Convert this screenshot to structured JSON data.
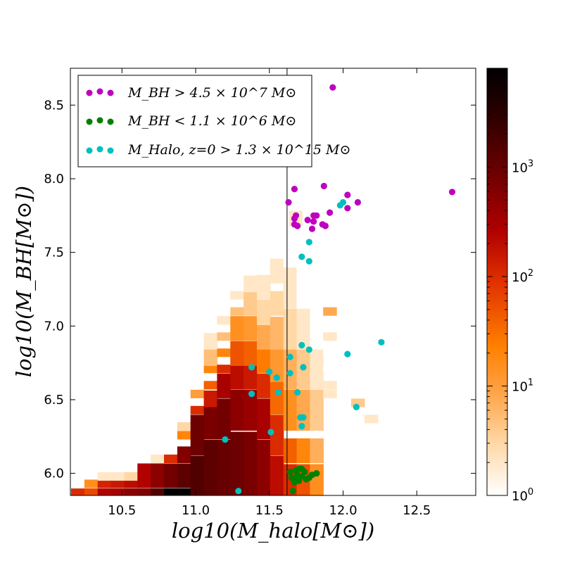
{
  "chart_data": {
    "type": "scatter",
    "title": "",
    "xlabel": "log10(M_halo[M⊙])",
    "ylabel": "log10(M_BH[M⊙])",
    "xlim": [
      10.15,
      12.9
    ],
    "ylim": [
      5.85,
      8.75
    ],
    "xticks": [
      "10.5",
      "11.0",
      "11.5",
      "12.0",
      "12.5"
    ],
    "yticks": [
      "6.0",
      "6.5",
      "7.0",
      "7.5",
      "8.0",
      "8.5"
    ],
    "vline_x": 11.62,
    "colorbar": {
      "scale": "log",
      "range": [
        1,
        8000
      ],
      "ticks": [
        "10^0",
        "10^1",
        "10^2",
        "10^3"
      ],
      "tick_values": [
        1,
        10,
        100,
        1000
      ]
    },
    "legend": {
      "position": "top-left",
      "entries": [
        {
          "label": "M_BH > 4.5 × 10^7 M⊙",
          "color": "#bf00bf"
        },
        {
          "label": "M_BH < 1.1 × 10^6 M⊙",
          "color": "#008000"
        },
        {
          "label": "M_Halo, z=0 > 1.3 × 10^15 M⊙",
          "color": "#00bfbf"
        }
      ]
    },
    "heatmap": {
      "bin_width": 0.09,
      "bin_height": 0.055,
      "columns": [
        {
          "x": 10.2,
          "bins": [
            [
              5.87,
              5.87,
              100
            ]
          ]
        },
        {
          "x": 10.29,
          "bins": [
            [
              5.87,
              5.87,
              60
            ],
            [
              5.93,
              5.93,
              15
            ]
          ]
        },
        {
          "x": 10.38,
          "bins": [
            [
              5.87,
              5.87,
              250
            ],
            [
              5.93,
              5.93,
              120
            ],
            [
              5.98,
              5.98,
              2
            ]
          ]
        },
        {
          "x": 10.47,
          "bins": [
            [
              5.87,
              5.87,
              300
            ],
            [
              5.93,
              5.93,
              150
            ],
            [
              5.98,
              5.98,
              2
            ]
          ]
        },
        {
          "x": 10.56,
          "bins": [
            [
              5.87,
              5.87,
              500
            ],
            [
              5.93,
              5.93,
              200
            ],
            [
              5.98,
              5.98,
              3
            ]
          ]
        },
        {
          "x": 10.65,
          "bins": [
            [
              5.87,
              5.87,
              600
            ],
            [
              5.93,
              6.04,
              250
            ]
          ]
        },
        {
          "x": 10.74,
          "bins": [
            [
              5.87,
              5.87,
              1500
            ],
            [
              5.93,
              6.04,
              500
            ],
            [
              6.1,
              6.1,
              2
            ]
          ]
        },
        {
          "x": 10.83,
          "bins": [
            [
              5.87,
              5.87,
              8000
            ],
            [
              5.93,
              6.04,
              800
            ],
            [
              6.1,
              6.1,
              100
            ]
          ]
        },
        {
          "x": 10.92,
          "bins": [
            [
              5.87,
              5.87,
              8000
            ],
            [
              5.93,
              6.04,
              1200
            ],
            [
              6.1,
              6.2,
              600
            ],
            [
              6.26,
              6.26,
              20
            ],
            [
              6.32,
              6.32,
              3
            ]
          ]
        },
        {
          "x": 11.01,
          "bins": [
            [
              5.87,
              6.1,
              1500
            ],
            [
              6.15,
              6.37,
              900
            ],
            [
              6.43,
              6.48,
              100
            ],
            [
              6.54,
              6.54,
              10
            ]
          ]
        },
        {
          "x": 11.1,
          "bins": [
            [
              5.87,
              6.2,
              1200
            ],
            [
              6.26,
              6.43,
              700
            ],
            [
              6.48,
              6.54,
              150
            ],
            [
              6.6,
              6.65,
              40
            ],
            [
              6.71,
              6.71,
              20
            ],
            [
              6.76,
              6.82,
              5
            ],
            [
              6.87,
              6.93,
              2
            ]
          ]
        },
        {
          "x": 11.19,
          "bins": [
            [
              5.87,
              6.2,
              1000
            ],
            [
              6.26,
              6.48,
              800
            ],
            [
              6.54,
              6.65,
              300
            ],
            [
              6.71,
              6.76,
              100
            ],
            [
              6.82,
              6.87,
              20
            ],
            [
              6.93,
              6.98,
              5
            ],
            [
              7.04,
              7.04,
              2
            ]
          ]
        },
        {
          "x": 11.28,
          "bins": [
            [
              5.87,
              6.26,
              900
            ],
            [
              6.32,
              6.54,
              500
            ],
            [
              6.6,
              6.71,
              200
            ],
            [
              6.76,
              6.87,
              50
            ],
            [
              6.93,
              7.04,
              15
            ],
            [
              7.1,
              7.15,
              5
            ],
            [
              7.21,
              7.21,
              2
            ]
          ]
        },
        {
          "x": 11.37,
          "bins": [
            [
              5.87,
              6.26,
              700
            ],
            [
              6.32,
              6.54,
              400
            ],
            [
              6.6,
              6.71,
              150
            ],
            [
              6.76,
              6.87,
              40
            ],
            [
              6.93,
              7.04,
              12
            ],
            [
              7.1,
              7.21,
              4
            ],
            [
              7.26,
              7.32,
              2
            ]
          ]
        },
        {
          "x": 11.46,
          "bins": [
            [
              5.87,
              6.2,
              500
            ],
            [
              6.26,
              6.48,
              300
            ],
            [
              6.54,
              6.65,
              100
            ],
            [
              6.71,
              6.82,
              25
            ],
            [
              6.87,
              6.98,
              8
            ],
            [
              7.04,
              7.15,
              3
            ],
            [
              7.21,
              7.37,
              2
            ]
          ]
        },
        {
          "x": 11.55,
          "bins": [
            [
              5.87,
              6.1,
              200
            ],
            [
              6.15,
              6.37,
              100
            ],
            [
              6.43,
              6.6,
              35
            ],
            [
              6.65,
              6.82,
              12
            ],
            [
              6.87,
              7.04,
              6
            ],
            [
              7.1,
              7.26,
              3
            ],
            [
              7.32,
              7.48,
              2
            ]
          ]
        },
        {
          "x": 11.64,
          "bins": [
            [
              5.87,
              6.04,
              100
            ],
            [
              6.1,
              6.26,
              40
            ],
            [
              6.32,
              6.54,
              15
            ],
            [
              6.6,
              6.82,
              7
            ],
            [
              6.87,
              7.1,
              3
            ],
            [
              7.15,
              7.37,
              2
            ],
            [
              7.43,
              7.54,
              1
            ]
          ]
        },
        {
          "x": 11.73,
          "bins": [
            [
              5.87,
              6.04,
              50
            ],
            [
              6.1,
              6.26,
              20
            ],
            [
              6.32,
              6.54,
              8
            ],
            [
              6.6,
              6.82,
              4
            ],
            [
              6.87,
              7.1,
              2
            ],
            [
              7.15,
              7.37,
              1
            ]
          ]
        },
        {
          "x": 11.82,
          "bins": [
            [
              5.87,
              6.04,
              15
            ],
            [
              6.1,
              6.26,
              7
            ],
            [
              6.32,
              6.54,
              4
            ],
            [
              6.6,
              6.82,
              2
            ],
            [
              6.87,
              7.1,
              1
            ],
            [
              7.15,
              7.32,
              1
            ]
          ]
        },
        {
          "x": 11.91,
          "bins": [
            [
              6.54,
              6.54,
              2
            ],
            [
              6.6,
              6.65,
              2
            ],
            [
              6.71,
              6.71,
              1
            ],
            [
              6.82,
              6.82,
              1
            ],
            [
              6.93,
              6.93,
              2
            ],
            [
              7.1,
              7.1,
              8
            ]
          ]
        },
        {
          "x": 12.0,
          "bins": [
            [
              6.82,
              6.82,
              1
            ]
          ]
        },
        {
          "x": 12.1,
          "bins": [
            [
              6.48,
              6.48,
              4
            ]
          ]
        },
        {
          "x": 12.19,
          "bins": [
            [
              6.37,
              6.37,
              2
            ]
          ]
        },
        {
          "x": 11.68,
          "bins": [
            [
              7.7,
              7.76,
              2
            ],
            [
              7.65,
              7.65,
              1
            ]
          ]
        },
        {
          "x": 11.77,
          "bins": [
            [
              7.7,
              7.81,
              1
            ]
          ]
        }
      ]
    },
    "series": [
      {
        "name": "M_BH > 4.5 × 10^7 M⊙",
        "color": "#bf00bf",
        "points": [
          [
            11.93,
            8.62
          ],
          [
            12.74,
            7.91
          ],
          [
            11.67,
            7.93
          ],
          [
            11.87,
            7.95
          ],
          [
            12.03,
            7.89
          ],
          [
            12.1,
            7.84
          ],
          [
            11.63,
            7.84
          ],
          [
            11.91,
            7.77
          ],
          [
            12.03,
            7.8
          ],
          [
            11.68,
            7.75
          ],
          [
            11.67,
            7.73
          ],
          [
            11.76,
            7.72
          ],
          [
            11.8,
            7.75
          ],
          [
            11.82,
            7.75
          ],
          [
            11.8,
            7.71
          ],
          [
            11.67,
            7.69
          ],
          [
            11.69,
            7.68
          ],
          [
            11.86,
            7.69
          ],
          [
            11.88,
            7.68
          ],
          [
            11.79,
            7.66
          ]
        ]
      },
      {
        "name": "M_BH < 1.1 × 10^6 M⊙",
        "color": "#008000",
        "points": [
          [
            11.64,
            6.01
          ],
          [
            11.65,
            5.97
          ],
          [
            11.67,
            5.96
          ],
          [
            11.68,
            6.02
          ],
          [
            11.7,
            6.03
          ],
          [
            11.72,
            6.03
          ],
          [
            11.74,
            6.01
          ],
          [
            11.69,
            5.99
          ],
          [
            11.72,
            5.98
          ],
          [
            11.67,
            5.94
          ],
          [
            11.7,
            5.95
          ],
          [
            11.77,
            5.97
          ],
          [
            11.79,
            5.99
          ],
          [
            11.82,
            6.0
          ],
          [
            11.75,
            5.96
          ],
          [
            11.66,
            5.88
          ]
        ]
      },
      {
        "name": "M_Halo, z=0 > 1.3 × 10^15 M⊙",
        "color": "#00bfbf",
        "points": [
          [
            11.98,
            7.82
          ],
          [
            12.0,
            7.84
          ],
          [
            11.77,
            7.57
          ],
          [
            11.72,
            7.47
          ],
          [
            11.77,
            7.44
          ],
          [
            12.26,
            6.89
          ],
          [
            11.72,
            6.87
          ],
          [
            11.77,
            6.84
          ],
          [
            12.03,
            6.81
          ],
          [
            11.64,
            6.79
          ],
          [
            11.38,
            6.72
          ],
          [
            11.73,
            6.72
          ],
          [
            11.5,
            6.69
          ],
          [
            11.64,
            6.68
          ],
          [
            11.55,
            6.65
          ],
          [
            11.38,
            6.54
          ],
          [
            11.56,
            6.55
          ],
          [
            11.69,
            6.55
          ],
          [
            12.09,
            6.45
          ],
          [
            11.71,
            6.38
          ],
          [
            11.73,
            6.38
          ],
          [
            11.72,
            6.32
          ],
          [
            11.51,
            6.28
          ],
          [
            11.2,
            6.23
          ],
          [
            11.29,
            5.88
          ]
        ]
      }
    ]
  }
}
